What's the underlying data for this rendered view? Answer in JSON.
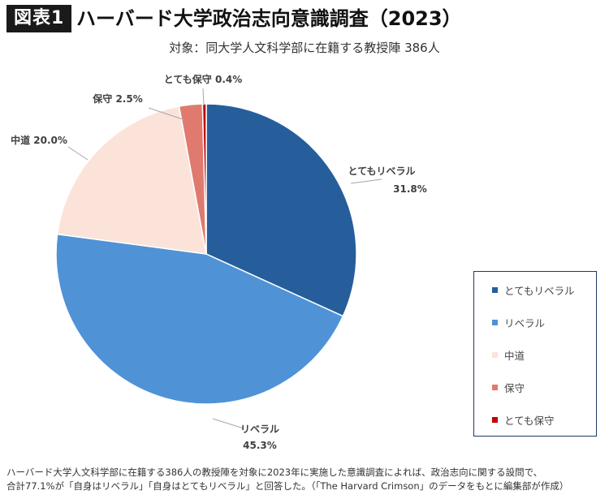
{
  "figure": {
    "badge": "図表1",
    "title": "ハーバード大学政治志向意識調査（2023）",
    "subtitle": "対象：同大学人文科学部に在籍する教授陣 386人"
  },
  "chart_data": {
    "type": "pie",
    "title": "ハーバード大学政治志向意識調査（2023）",
    "subtitle": "対象：同大学人文科学部に在籍する教授陣 386人",
    "unit": "%",
    "categories": [
      "とてもリベラル",
      "リベラル",
      "中道",
      "保守",
      "とても保守"
    ],
    "values": [
      31.8,
      45.3,
      20.0,
      2.5,
      0.4
    ],
    "data_labels": [
      "31.8%",
      "45.3%",
      "20.0%",
      "2.5%",
      "0.4%"
    ],
    "colors": [
      "#255e9b",
      "#4f93d6",
      "#fbe3da",
      "#e07a6e",
      "#c00000"
    ],
    "start": "12 o'clock, clockwise",
    "legend": "right"
  },
  "footnote": {
    "line1": "ハーバード大学人文科学部に在籍する386人の教授陣を対象に2023年に実施した意識調査によれば、政治志向に関する設問で、",
    "line2": "合計77.1%が「自身はリベラル」「自身はとてもリベラル」と回答した。（「The Harvard Crimson」のデータをもとに編集部が作成）"
  }
}
